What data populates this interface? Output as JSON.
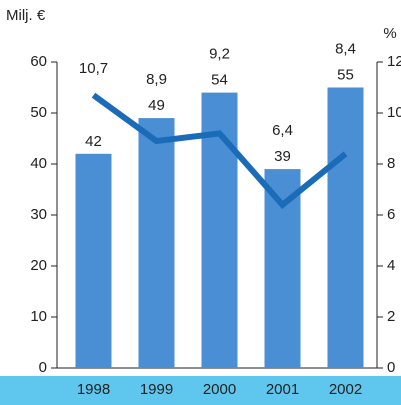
{
  "chart_data": {
    "type": "bar-line",
    "y_label": "Milj. €",
    "y2_label": "%",
    "categories": [
      "1998",
      "1999",
      "2000",
      "2001",
      "2002"
    ],
    "series": [
      {
        "type": "bar",
        "color": "#4a8ed4",
        "values": [
          42,
          49,
          54,
          39,
          55
        ]
      },
      {
        "type": "line",
        "axis": "y2",
        "color": "#1a6bb8",
        "values": [
          10.7,
          8.9,
          9.2,
          6.4,
          8.4
        ],
        "value_labels": [
          "10,7",
          "8,9",
          "9,2",
          "6,4",
          "8,4"
        ]
      }
    ],
    "ylim": [
      0,
      60
    ],
    "yticks": [
      0,
      10,
      20,
      30,
      40,
      50,
      60
    ],
    "y2lim": [
      0,
      12
    ],
    "y2ticks": [
      0,
      2,
      4,
      6,
      8,
      10,
      12
    ],
    "grid": false
  }
}
